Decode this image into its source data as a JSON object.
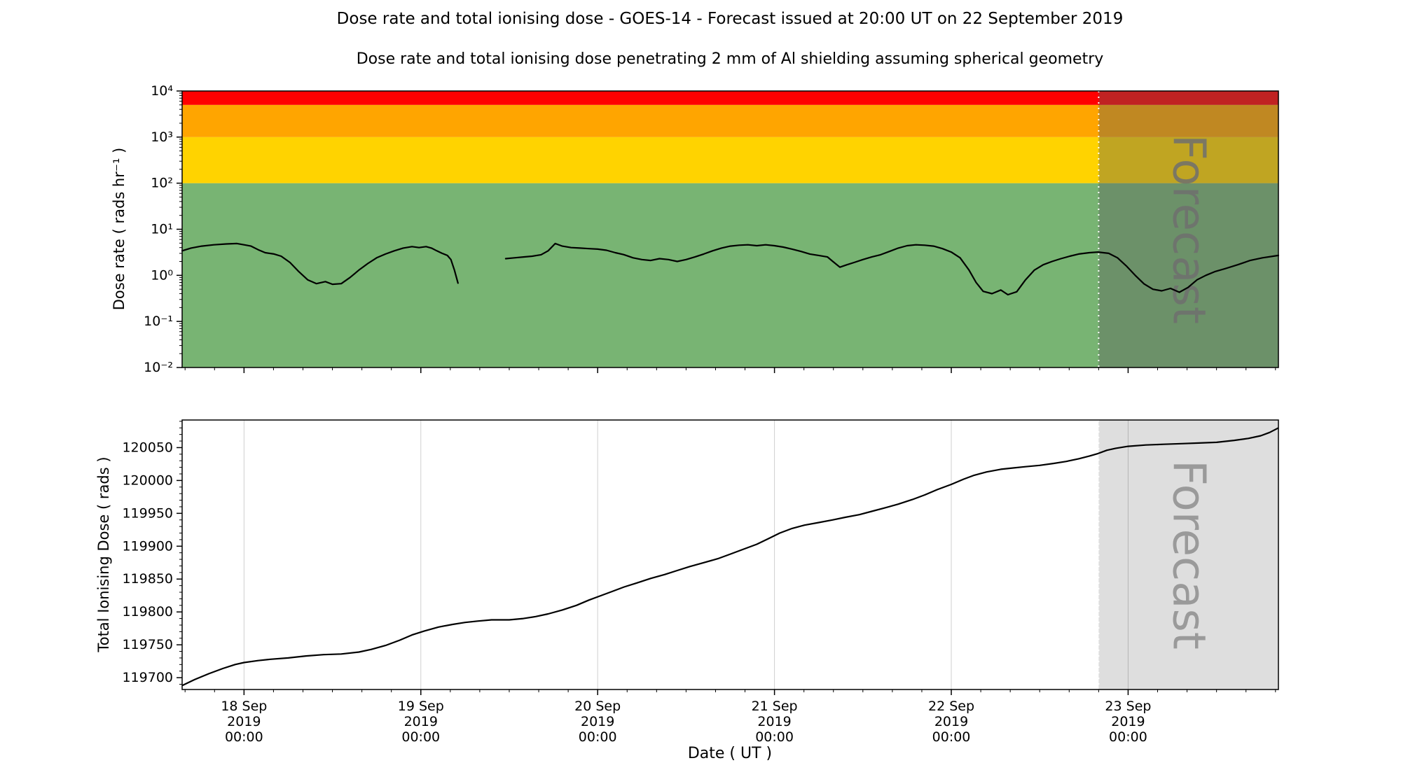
{
  "figure": {
    "title": "Dose rate and total ionising dose - GOES-14 - Forecast issued at 20:00 UT on 22 September 2019",
    "subtitle": "Dose rate and total ionising dose penetrating 2 mm of Al shielding assuming spherical geometry",
    "xlabel": "Date ( UT )"
  },
  "chart_data": [
    {
      "type": "line",
      "name": "dose-rate",
      "ylabel": "Dose rate ( rads hr⁻¹ )",
      "yscale": "log",
      "ylim": [
        0.01,
        10000
      ],
      "yticks": [
        {
          "v": 0.01,
          "label": "10⁻²"
        },
        {
          "v": 0.1,
          "label": "10⁻¹"
        },
        {
          "v": 1,
          "label": "10⁰"
        },
        {
          "v": 10,
          "label": "10¹"
        },
        {
          "v": 100,
          "label": "10²"
        },
        {
          "v": 1000,
          "label": "10³"
        },
        {
          "v": 10000,
          "label": "10⁴"
        }
      ],
      "xlim": [
        0.65,
        6.85
      ],
      "x_axis_note": "x in days, 0 = 17 Sep 2019 00:00 UT (read from date ticks)",
      "xticks": [
        {
          "x": 1,
          "lines": [
            "18 Sep",
            "2019",
            "00:00"
          ]
        },
        {
          "x": 2,
          "lines": [
            "19 Sep",
            "2019",
            "00:00"
          ]
        },
        {
          "x": 3,
          "lines": [
            "20 Sep",
            "2019",
            "00:00"
          ]
        },
        {
          "x": 4,
          "lines": [
            "21 Sep",
            "2019",
            "00:00"
          ]
        },
        {
          "x": 5,
          "lines": [
            "22 Sep",
            "2019",
            "00:00"
          ]
        },
        {
          "x": 6,
          "lines": [
            "23 Sep",
            "2019",
            "00:00"
          ]
        }
      ],
      "threshold_bands": [
        {
          "level": "green",
          "from": 0.01,
          "to": 100,
          "color": "#78b473"
        },
        {
          "level": "yellow",
          "from": 100,
          "to": 1000,
          "color": "#ffd300"
        },
        {
          "level": "orange",
          "from": 1000,
          "to": 5000,
          "color": "#ffa500"
        },
        {
          "level": "red",
          "from": 5000,
          "to": 10000,
          "color": "#ff0000"
        }
      ],
      "forecast_start_x": 5.8333,
      "forecast_label": "Forecast",
      "line_color": "#000000",
      "series_segments": [
        [
          [
            0.65,
            3.4
          ],
          [
            0.7,
            3.9
          ],
          [
            0.76,
            4.3
          ],
          [
            0.83,
            4.6
          ],
          [
            0.9,
            4.8
          ],
          [
            0.96,
            4.9
          ],
          [
            1.0,
            4.6
          ],
          [
            1.04,
            4.3
          ],
          [
            1.08,
            3.6
          ],
          [
            1.12,
            3.1
          ],
          [
            1.17,
            2.9
          ],
          [
            1.21,
            2.6
          ],
          [
            1.26,
            1.9
          ],
          [
            1.31,
            1.2
          ],
          [
            1.36,
            0.8
          ],
          [
            1.41,
            0.66
          ],
          [
            1.46,
            0.73
          ],
          [
            1.5,
            0.64
          ],
          [
            1.55,
            0.66
          ],
          [
            1.6,
            0.9
          ],
          [
            1.65,
            1.3
          ],
          [
            1.7,
            1.8
          ],
          [
            1.75,
            2.4
          ],
          [
            1.8,
            2.9
          ],
          [
            1.85,
            3.4
          ],
          [
            1.9,
            3.9
          ],
          [
            1.95,
            4.2
          ],
          [
            1.99,
            4.0
          ],
          [
            2.03,
            4.2
          ],
          [
            2.06,
            3.9
          ],
          [
            2.09,
            3.4
          ],
          [
            2.12,
            3.0
          ],
          [
            2.15,
            2.7
          ],
          [
            2.17,
            2.2
          ],
          [
            2.19,
            1.3
          ],
          [
            2.21,
            0.68
          ]
        ],
        [
          [
            2.48,
            2.3
          ],
          [
            2.53,
            2.4
          ],
          [
            2.58,
            2.5
          ],
          [
            2.63,
            2.6
          ],
          [
            2.68,
            2.8
          ],
          [
            2.72,
            3.4
          ],
          [
            2.76,
            4.9
          ],
          [
            2.8,
            4.3
          ],
          [
            2.85,
            4.0
          ],
          [
            2.9,
            3.9
          ],
          [
            2.95,
            3.8
          ],
          [
            3.0,
            3.7
          ],
          [
            3.05,
            3.5
          ],
          [
            3.1,
            3.1
          ],
          [
            3.15,
            2.8
          ],
          [
            3.2,
            2.4
          ],
          [
            3.25,
            2.2
          ],
          [
            3.3,
            2.1
          ],
          [
            3.35,
            2.3
          ],
          [
            3.4,
            2.2
          ],
          [
            3.45,
            2.0
          ],
          [
            3.5,
            2.2
          ],
          [
            3.55,
            2.5
          ],
          [
            3.6,
            2.9
          ],
          [
            3.65,
            3.4
          ],
          [
            3.7,
            3.9
          ],
          [
            3.75,
            4.3
          ],
          [
            3.8,
            4.5
          ],
          [
            3.85,
            4.6
          ],
          [
            3.9,
            4.4
          ],
          [
            3.95,
            4.6
          ],
          [
            4.0,
            4.4
          ],
          [
            4.05,
            4.1
          ],
          [
            4.1,
            3.7
          ],
          [
            4.15,
            3.3
          ],
          [
            4.2,
            2.9
          ],
          [
            4.25,
            2.7
          ],
          [
            4.3,
            2.5
          ],
          [
            4.33,
            2.0
          ],
          [
            4.37,
            1.5
          ],
          [
            4.41,
            1.7
          ],
          [
            4.45,
            1.9
          ],
          [
            4.5,
            2.2
          ],
          [
            4.55,
            2.5
          ],
          [
            4.6,
            2.8
          ],
          [
            4.65,
            3.3
          ],
          [
            4.7,
            3.9
          ],
          [
            4.75,
            4.4
          ],
          [
            4.8,
            4.6
          ],
          [
            4.85,
            4.5
          ],
          [
            4.9,
            4.3
          ],
          [
            4.95,
            3.8
          ],
          [
            5.0,
            3.2
          ],
          [
            5.05,
            2.4
          ],
          [
            5.1,
            1.3
          ],
          [
            5.14,
            0.7
          ],
          [
            5.18,
            0.45
          ],
          [
            5.23,
            0.4
          ],
          [
            5.28,
            0.48
          ],
          [
            5.32,
            0.38
          ],
          [
            5.37,
            0.44
          ],
          [
            5.42,
            0.8
          ],
          [
            5.47,
            1.3
          ],
          [
            5.52,
            1.7
          ],
          [
            5.57,
            2.0
          ],
          [
            5.62,
            2.3
          ],
          [
            5.67,
            2.6
          ],
          [
            5.72,
            2.9
          ],
          [
            5.78,
            3.1
          ],
          [
            5.83,
            3.2
          ],
          [
            5.89,
            3.0
          ],
          [
            5.94,
            2.4
          ],
          [
            5.99,
            1.6
          ],
          [
            6.04,
            1.0
          ],
          [
            6.09,
            0.65
          ],
          [
            6.14,
            0.5
          ],
          [
            6.19,
            0.46
          ],
          [
            6.24,
            0.52
          ],
          [
            6.29,
            0.43
          ],
          [
            6.34,
            0.55
          ],
          [
            6.39,
            0.8
          ],
          [
            6.44,
            1.0
          ],
          [
            6.49,
            1.2
          ],
          [
            6.55,
            1.4
          ],
          [
            6.62,
            1.7
          ],
          [
            6.69,
            2.1
          ],
          [
            6.76,
            2.4
          ],
          [
            6.85,
            2.7
          ]
        ]
      ]
    },
    {
      "type": "line",
      "name": "total-ionising-dose",
      "ylabel": "Total Ionising Dose ( rads )",
      "yscale": "linear",
      "ylim": [
        119682,
        120092
      ],
      "yticks": [
        119700,
        119750,
        119800,
        119850,
        119900,
        119950,
        120000,
        120050
      ],
      "xlim": [
        0.65,
        6.85
      ],
      "xticks": [
        {
          "x": 1,
          "lines": [
            "18 Sep",
            "2019",
            "00:00"
          ]
        },
        {
          "x": 2,
          "lines": [
            "19 Sep",
            "2019",
            "00:00"
          ]
        },
        {
          "x": 3,
          "lines": [
            "20 Sep",
            "2019",
            "00:00"
          ]
        },
        {
          "x": 4,
          "lines": [
            "21 Sep",
            "2019",
            "00:00"
          ]
        },
        {
          "x": 5,
          "lines": [
            "22 Sep",
            "2019",
            "00:00"
          ]
        },
        {
          "x": 6,
          "lines": [
            "23 Sep",
            "2019",
            "00:00"
          ]
        }
      ],
      "forecast_start_x": 5.8333,
      "forecast_label": "Forecast",
      "line_color": "#000000",
      "grid": "vertical-major",
      "points": [
        [
          0.65,
          119688
        ],
        [
          0.72,
          119697
        ],
        [
          0.8,
          119706
        ],
        [
          0.88,
          119714
        ],
        [
          0.95,
          119720
        ],
        [
          1.0,
          119723
        ],
        [
          1.08,
          119726
        ],
        [
          1.15,
          119728
        ],
        [
          1.25,
          119730
        ],
        [
          1.35,
          119733
        ],
        [
          1.45,
          119735
        ],
        [
          1.55,
          119736
        ],
        [
          1.65,
          119739
        ],
        [
          1.72,
          119743
        ],
        [
          1.8,
          119749
        ],
        [
          1.88,
          119757
        ],
        [
          1.95,
          119765
        ],
        [
          2.02,
          119771
        ],
        [
          2.1,
          119777
        ],
        [
          2.18,
          119781
        ],
        [
          2.25,
          119784
        ],
        [
          2.32,
          119786
        ],
        [
          2.4,
          119788
        ],
        [
          2.5,
          119788
        ],
        [
          2.58,
          119790
        ],
        [
          2.65,
          119793
        ],
        [
          2.72,
          119797
        ],
        [
          2.8,
          119803
        ],
        [
          2.88,
          119810
        ],
        [
          2.95,
          119818
        ],
        [
          3.0,
          119823
        ],
        [
          3.08,
          119831
        ],
        [
          3.15,
          119838
        ],
        [
          3.22,
          119844
        ],
        [
          3.3,
          119851
        ],
        [
          3.38,
          119857
        ],
        [
          3.45,
          119863
        ],
        [
          3.52,
          119869
        ],
        [
          3.6,
          119875
        ],
        [
          3.68,
          119881
        ],
        [
          3.75,
          119888
        ],
        [
          3.82,
          119895
        ],
        [
          3.9,
          119903
        ],
        [
          3.97,
          119912
        ],
        [
          4.03,
          119920
        ],
        [
          4.1,
          119927
        ],
        [
          4.17,
          119932
        ],
        [
          4.25,
          119936
        ],
        [
          4.33,
          119940
        ],
        [
          4.4,
          119944
        ],
        [
          4.48,
          119948
        ],
        [
          4.55,
          119953
        ],
        [
          4.62,
          119958
        ],
        [
          4.7,
          119964
        ],
        [
          4.78,
          119971
        ],
        [
          4.85,
          119978
        ],
        [
          4.92,
          119986
        ],
        [
          5.0,
          119994
        ],
        [
          5.07,
          120002
        ],
        [
          5.13,
          120008
        ],
        [
          5.2,
          120013
        ],
        [
          5.28,
          120017
        ],
        [
          5.35,
          120019
        ],
        [
          5.42,
          120021
        ],
        [
          5.5,
          120023
        ],
        [
          5.58,
          120026
        ],
        [
          5.65,
          120029
        ],
        [
          5.72,
          120033
        ],
        [
          5.78,
          120037
        ],
        [
          5.83,
          120041
        ],
        [
          5.88,
          120046
        ],
        [
          5.93,
          120049
        ],
        [
          6.0,
          120052
        ],
        [
          6.1,
          120054
        ],
        [
          6.2,
          120055
        ],
        [
          6.3,
          120056
        ],
        [
          6.4,
          120057
        ],
        [
          6.5,
          120058
        ],
        [
          6.6,
          120061
        ],
        [
          6.68,
          120064
        ],
        [
          6.75,
          120068
        ],
        [
          6.8,
          120073
        ],
        [
          6.85,
          120080
        ]
      ]
    }
  ]
}
